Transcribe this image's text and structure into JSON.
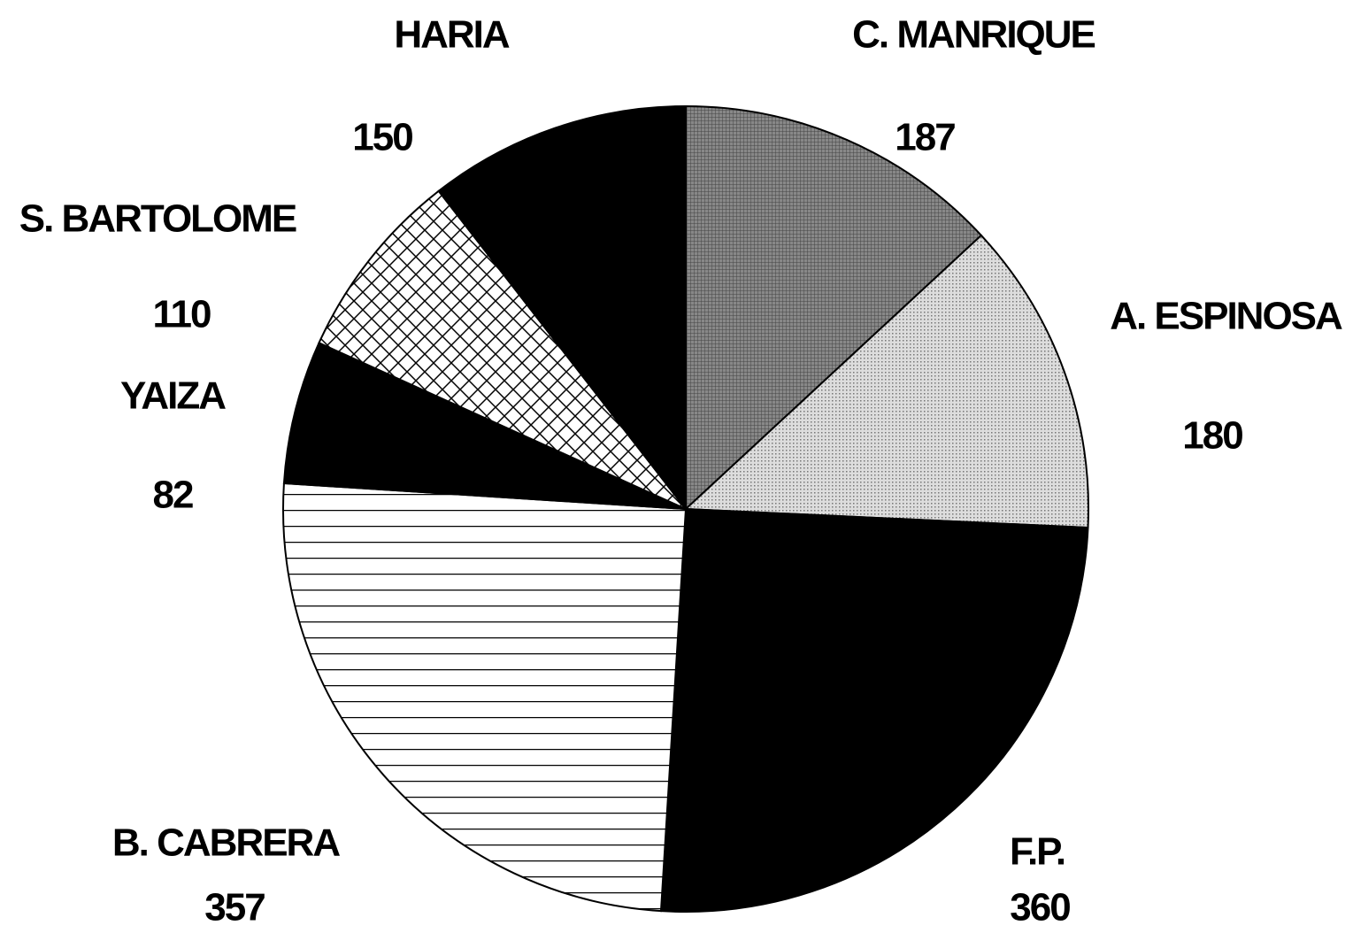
{
  "chart_data": {
    "type": "pie",
    "categories": [
      "C. MANRIQUE",
      "A. ESPINOSA",
      "F.P.",
      "B. CABRERA",
      "YAIZA",
      "S. BARTOLOME",
      "HARIA"
    ],
    "values": [
      187,
      180,
      360,
      357,
      82,
      110,
      150
    ],
    "colors": [
      "#777777",
      "#cccccc",
      "#000000",
      "#ffffff",
      "#000000",
      "#ffffff",
      "#000000"
    ],
    "patterns": [
      "grid",
      "dots",
      "solid",
      "horizontal",
      "solid",
      "crosshatch",
      "solid"
    ]
  }
}
